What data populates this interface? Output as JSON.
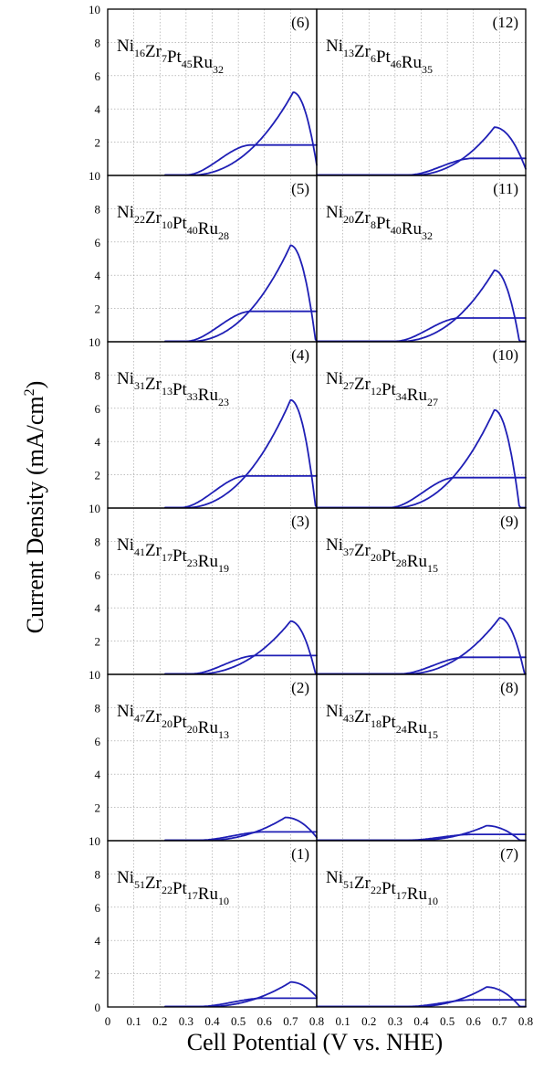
{
  "chart_data": {
    "type": "line",
    "xlabel": "Cell Potential (V vs. NHE)",
    "ylabel": "Current Density (mA/cm",
    "ylabel_superscript": "2",
    "ylabel_close": ")",
    "xlim": [
      0,
      0.8
    ],
    "ylim": [
      0,
      10
    ],
    "x_ticks": [
      "0",
      "0.1",
      "0.2",
      "0.3",
      "0.4",
      "0.5",
      "0.6",
      "0.7",
      "0.8"
    ],
    "y_ticks": [
      "0",
      "2",
      "4",
      "6",
      "8",
      "10"
    ],
    "grid": true,
    "rows": [
      [
        {
          "id": "(6)",
          "composition": [
            [
              "Ni",
              "16"
            ],
            [
              "Zr",
              "7"
            ],
            [
              "Pt",
              "45"
            ],
            [
              "Ru",
              "32"
            ]
          ],
          "peak": 5.0,
          "peak_v": 0.71,
          "onset": 0.3,
          "plateau": 1.8,
          "start_v": 0.22
        },
        {
          "id": "(12)",
          "composition": [
            [
              "Ni",
              "13"
            ],
            [
              "Zr",
              "6"
            ],
            [
              "Pt",
              "46"
            ],
            [
              "Ru",
              "35"
            ]
          ],
          "peak": 2.9,
          "peak_v": 0.68,
          "onset": 0.35,
          "plateau": 1.0,
          "start_v": 0.0
        }
      ],
      [
        {
          "id": "(5)",
          "composition": [
            [
              "Ni",
              "22"
            ],
            [
              "Zr",
              "10"
            ],
            [
              "Pt",
              "40"
            ],
            [
              "Ru",
              "28"
            ]
          ],
          "peak": 5.8,
          "peak_v": 0.7,
          "onset": 0.3,
          "plateau": 1.8,
          "start_v": 0.22
        },
        {
          "id": "(11)",
          "composition": [
            [
              "Ni",
              "20"
            ],
            [
              "Zr",
              "8"
            ],
            [
              "Pt",
              "40"
            ],
            [
              "Ru",
              "32"
            ]
          ],
          "peak": 4.3,
          "peak_v": 0.68,
          "onset": 0.3,
          "plateau": 1.4,
          "start_v": 0.0
        }
      ],
      [
        {
          "id": "(4)",
          "composition": [
            [
              "Ni",
              "31"
            ],
            [
              "Zr",
              "13"
            ],
            [
              "Pt",
              "33"
            ],
            [
              "Ru",
              "23"
            ]
          ],
          "peak": 6.5,
          "peak_v": 0.7,
          "onset": 0.28,
          "plateau": 1.9,
          "start_v": 0.22
        },
        {
          "id": "(10)",
          "composition": [
            [
              "Ni",
              "27"
            ],
            [
              "Zr",
              "12"
            ],
            [
              "Pt",
              "34"
            ],
            [
              "Ru",
              "27"
            ]
          ],
          "peak": 5.9,
          "peak_v": 0.68,
          "onset": 0.28,
          "plateau": 1.8,
          "start_v": 0.0
        }
      ],
      [
        {
          "id": "(3)",
          "composition": [
            [
              "Ni",
              "41"
            ],
            [
              "Zr",
              "17"
            ],
            [
              "Pt",
              "23"
            ],
            [
              "Ru",
              "19"
            ]
          ],
          "peak": 3.2,
          "peak_v": 0.7,
          "onset": 0.32,
          "plateau": 1.1,
          "start_v": 0.22
        },
        {
          "id": "(9)",
          "composition": [
            [
              "Ni",
              "37"
            ],
            [
              "Zr",
              "20"
            ],
            [
              "Pt",
              "28"
            ],
            [
              "Ru",
              "15"
            ]
          ],
          "peak": 3.4,
          "peak_v": 0.7,
          "onset": 0.32,
          "plateau": 1.0,
          "start_v": 0.0
        }
      ],
      [
        {
          "id": "(2)",
          "composition": [
            [
              "Ni",
              "47"
            ],
            [
              "Zr",
              "20"
            ],
            [
              "Pt",
              "20"
            ],
            [
              "Ru",
              "13"
            ]
          ],
          "peak": 1.4,
          "peak_v": 0.68,
          "onset": 0.35,
          "plateau": 0.5,
          "start_v": 0.22
        },
        {
          "id": "(8)",
          "composition": [
            [
              "Ni",
              "43"
            ],
            [
              "Zr",
              "18"
            ],
            [
              "Pt",
              "24"
            ],
            [
              "Ru",
              "15"
            ]
          ],
          "peak": 0.9,
          "peak_v": 0.65,
          "onset": 0.35,
          "plateau": 0.35,
          "start_v": 0.0
        }
      ],
      [
        {
          "id": "(1)",
          "composition": [
            [
              "Ni",
              "51"
            ],
            [
              "Zr",
              "22"
            ],
            [
              "Pt",
              "17"
            ],
            [
              "Ru",
              "10"
            ]
          ],
          "peak": 1.5,
          "peak_v": 0.7,
          "onset": 0.35,
          "plateau": 0.5,
          "start_v": 0.22
        },
        {
          "id": "(7)",
          "composition": [
            [
              "Ni",
              "51"
            ],
            [
              "Zr",
              "22"
            ],
            [
              "Pt",
              "17"
            ],
            [
              "Ru",
              "10"
            ]
          ],
          "peak": 1.2,
          "peak_v": 0.65,
          "onset": 0.35,
          "plateau": 0.4,
          "start_v": 0.0
        }
      ]
    ]
  }
}
